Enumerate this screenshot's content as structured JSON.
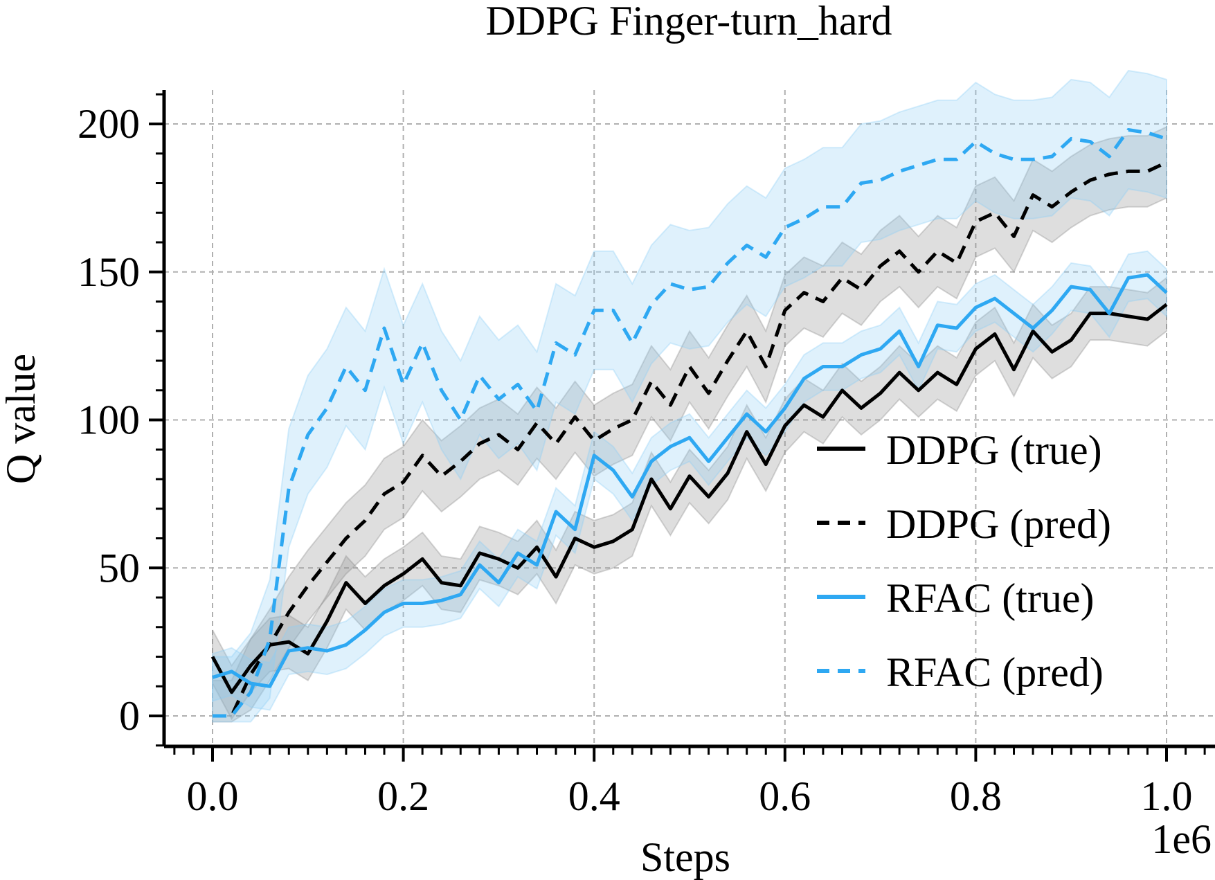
{
  "chart_data": {
    "type": "line",
    "title": "DDPG Finger-turn_hard",
    "xlabel": "Steps",
    "ylabel": "Q value",
    "x_offset_label": "1e6",
    "xlim": [
      -0.05,
      1.05
    ],
    "ylim": [
      -10,
      210
    ],
    "x_ticks": [
      0.0,
      0.2,
      0.4,
      0.6,
      0.8,
      1.0
    ],
    "x_tick_labels": [
      "0.0",
      "0.2",
      "0.4",
      "0.6",
      "0.8",
      "1.0"
    ],
    "y_ticks": [
      0,
      50,
      100,
      150,
      200
    ],
    "y_tick_labels": [
      "0",
      "50",
      "100",
      "150",
      "200"
    ],
    "grid": true,
    "legend_position": "lower-right",
    "x": [
      0.0,
      0.02,
      0.04,
      0.06,
      0.08,
      0.1,
      0.12,
      0.14,
      0.16,
      0.18,
      0.2,
      0.22,
      0.24,
      0.26,
      0.28,
      0.3,
      0.32,
      0.34,
      0.36,
      0.38,
      0.4,
      0.42,
      0.44,
      0.46,
      0.48,
      0.5,
      0.52,
      0.54,
      0.56,
      0.58,
      0.6,
      0.62,
      0.64,
      0.66,
      0.68,
      0.7,
      0.72,
      0.74,
      0.76,
      0.78,
      0.8,
      0.82,
      0.84,
      0.86,
      0.88,
      0.9,
      0.92,
      0.94,
      0.96,
      0.98,
      1.0
    ],
    "series": [
      {
        "name": "DDPG (true)",
        "color": "#000000",
        "dash": "solid",
        "band": 9,
        "values": [
          20,
          8,
          17,
          24,
          25,
          21,
          32,
          45,
          38,
          44,
          48,
          53,
          45,
          44,
          55,
          53,
          50,
          57,
          47,
          60,
          57,
          59,
          63,
          80,
          70,
          81,
          74,
          82,
          96,
          85,
          98,
          105,
          101,
          110,
          104,
          109,
          116,
          110,
          116,
          112,
          124,
          129,
          117,
          130,
          123,
          127,
          136,
          136,
          135,
          134,
          139
        ]
      },
      {
        "name": "DDPG (pred)",
        "color": "#000000",
        "dash": "dashed",
        "band": 12,
        "values": [
          0,
          0,
          14,
          24,
          35,
          44,
          52,
          60,
          66,
          75,
          79,
          88,
          81,
          86,
          92,
          95,
          90,
          99,
          92,
          101,
          93,
          97,
          100,
          113,
          105,
          118,
          109,
          120,
          130,
          118,
          137,
          143,
          140,
          148,
          144,
          152,
          157,
          150,
          157,
          153,
          167,
          170,
          162,
          176,
          172,
          177,
          181,
          183,
          184,
          184,
          187
        ]
      },
      {
        "name": "RFAC (true)",
        "color": "#2ea8f2",
        "dash": "solid",
        "band": 8,
        "values": [
          13,
          15,
          11,
          10,
          22,
          23,
          22,
          24,
          29,
          35,
          38,
          38,
          39,
          41,
          51,
          45,
          55,
          51,
          69,
          63,
          88,
          83,
          74,
          86,
          91,
          94,
          86,
          94,
          102,
          96,
          104,
          114,
          118,
          118,
          122,
          124,
          130,
          118,
          132,
          131,
          138,
          141,
          136,
          131,
          137,
          145,
          144,
          136,
          148,
          149,
          143
        ]
      },
      {
        "name": "RFAC (pred)",
        "color": "#2ea8f2",
        "dash": "dashed",
        "band": 20,
        "values": [
          0,
          0,
          8,
          26,
          77,
          95,
          104,
          118,
          110,
          131,
          112,
          126,
          110,
          100,
          115,
          107,
          112,
          103,
          126,
          122,
          137,
          137,
          126,
          139,
          146,
          144,
          145,
          153,
          159,
          155,
          165,
          168,
          172,
          172,
          180,
          181,
          184,
          186,
          188,
          188,
          194,
          190,
          188,
          188,
          189,
          195,
          194,
          189,
          198,
          197,
          195
        ]
      }
    ]
  }
}
